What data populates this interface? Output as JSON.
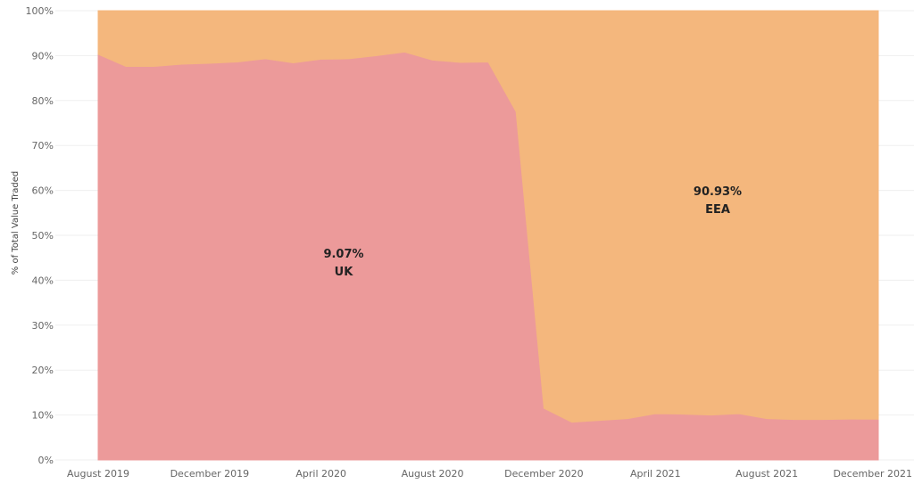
{
  "chart_data": {
    "type": "area",
    "stacked": true,
    "normalized": true,
    "ylabel": "% of Total Value Traded",
    "ylim": [
      0,
      100
    ],
    "y_ticks": [
      "0%",
      "10%",
      "20%",
      "30%",
      "40%",
      "50%",
      "60%",
      "70%",
      "80%",
      "90%",
      "100%"
    ],
    "x_tick_labels": [
      "August 2019",
      "December 2019",
      "April 2020",
      "August 2020",
      "December 2020",
      "April 2021",
      "August 2021",
      "December 2021"
    ],
    "x": [
      "2019-08",
      "2019-09",
      "2019-10",
      "2019-11",
      "2019-12",
      "2020-01",
      "2020-02",
      "2020-03",
      "2020-04",
      "2020-05",
      "2020-06",
      "2020-07",
      "2020-08",
      "2020-09",
      "2020-10",
      "2020-11",
      "2020-12",
      "2021-01",
      "2021-02",
      "2021-03",
      "2021-04",
      "2021-05",
      "2021-06",
      "2021-07",
      "2021-08",
      "2021-09",
      "2021-10",
      "2021-11",
      "2021-12"
    ],
    "series": [
      {
        "name": "UK",
        "color": "#ec9a9a",
        "values": [
          90.3,
          87.6,
          87.6,
          88.1,
          88.3,
          88.6,
          89.3,
          88.4,
          89.2,
          89.3,
          90.0,
          90.8,
          89.0,
          88.5,
          88.6,
          77.5,
          11.5,
          8.4,
          8.8,
          9.2,
          10.3,
          10.2,
          10.0,
          10.3,
          9.2,
          9.0,
          9.0,
          9.1,
          9.07
        ]
      },
      {
        "name": "EEA",
        "color": "#f4b77d",
        "values": [
          9.7,
          12.4,
          12.4,
          11.9,
          11.7,
          11.4,
          10.7,
          11.6,
          10.8,
          10.7,
          10.0,
          9.2,
          11.0,
          11.5,
          11.4,
          22.5,
          88.5,
          91.6,
          91.2,
          90.8,
          89.7,
          89.8,
          90.0,
          89.7,
          90.8,
          91.0,
          91.0,
          90.9,
          90.93
        ]
      }
    ],
    "annotations": [
      {
        "series": "UK",
        "pct": "9.07%",
        "label": "UK"
      },
      {
        "series": "EEA",
        "pct": "90.93%",
        "label": "EEA"
      }
    ],
    "grid": true,
    "legend": "none"
  }
}
